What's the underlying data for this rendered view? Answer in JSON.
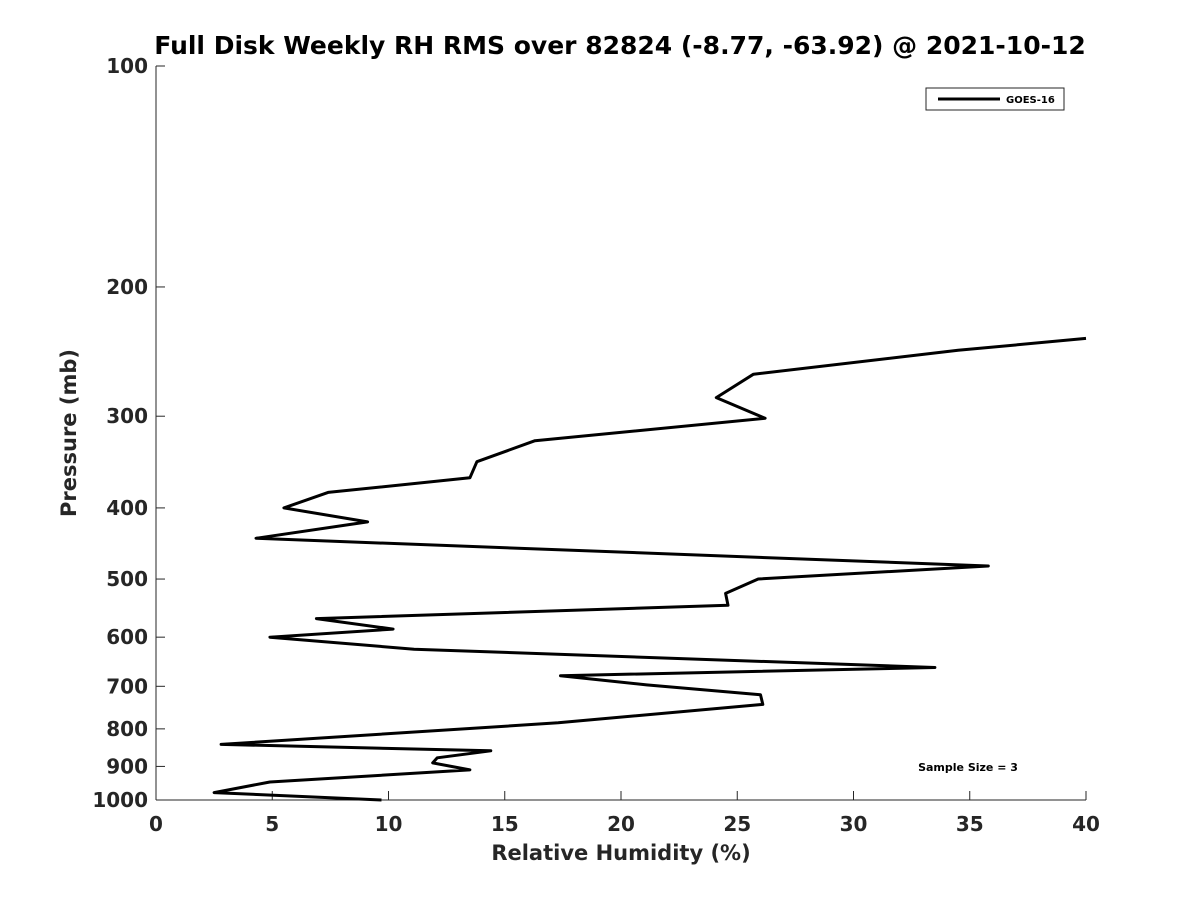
{
  "chart_data": {
    "type": "line",
    "title": "Full Disk Weekly RH RMS over 82824 (-8.77, -63.92) @ 2021-10-12",
    "xlabel": "Relative Humidity (%)",
    "ylabel": "Pressure (mb)",
    "xlim": [
      0,
      40
    ],
    "ylim": [
      100,
      1000
    ],
    "yscale": "log",
    "y_reversed": true,
    "xticks": [
      0,
      5,
      10,
      15,
      20,
      25,
      30,
      35,
      40
    ],
    "yticks": [
      100,
      200,
      300,
      400,
      500,
      600,
      700,
      800,
      900,
      1000
    ],
    "grid": false,
    "legend_position": "top-right",
    "annotation": "Sample Size = 3",
    "series": [
      {
        "name": "GOES-16",
        "color": "#000000",
        "points": [
          [
            40.0,
            235
          ],
          [
            34.5,
            244
          ],
          [
            25.7,
            263
          ],
          [
            24.1,
            283
          ],
          [
            26.2,
            302
          ],
          [
            16.3,
            324
          ],
          [
            13.8,
            346
          ],
          [
            13.5,
            364
          ],
          [
            7.4,
            381
          ],
          [
            5.5,
            400
          ],
          [
            9.1,
            418
          ],
          [
            4.3,
            440
          ],
          [
            35.8,
            480
          ],
          [
            25.9,
            500
          ],
          [
            24.5,
            523
          ],
          [
            24.6,
            543
          ],
          [
            6.9,
            566
          ],
          [
            10.2,
            585
          ],
          [
            4.9,
            600
          ],
          [
            11.1,
            623
          ],
          [
            33.5,
            660
          ],
          [
            17.4,
            677
          ],
          [
            21.1,
            697
          ],
          [
            26.0,
            719
          ],
          [
            26.1,
            741
          ],
          [
            17.3,
            785
          ],
          [
            2.8,
            840
          ],
          [
            14.4,
            857
          ],
          [
            12.1,
            876
          ],
          [
            11.9,
            890
          ],
          [
            13.5,
            910
          ],
          [
            4.9,
            945
          ],
          [
            2.5,
            977
          ],
          [
            9.7,
            1000
          ]
        ]
      }
    ]
  }
}
